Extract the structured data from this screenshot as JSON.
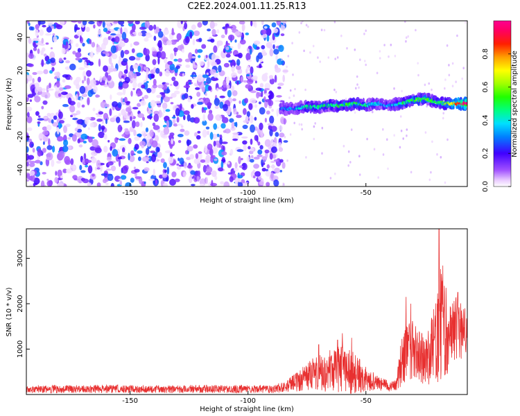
{
  "title": "C2E2.2024.001.11.25.R13",
  "chart_data": [
    {
      "type": "heatmap",
      "xlabel": "Height of straight line (km)",
      "ylabel": "Frequency (Hz)",
      "xlim": [
        -194,
        -7
      ],
      "ylim": [
        -50,
        50
      ],
      "xticks": [
        -150,
        -100,
        -50
      ],
      "yticks": [
        -40,
        -20,
        0,
        20,
        40
      ],
      "grid": false,
      "colorbar": {
        "label": "Normalized spectral amplitude",
        "range": [
          0,
          1
        ],
        "ticks": [
          0.0,
          0.2,
          0.4,
          0.6,
          0.8
        ],
        "tick_labels": [
          "0.0",
          "0.2",
          "0.4",
          "0.6",
          "0.8"
        ],
        "colormap": "gist_ncar_r",
        "low_color": "#ffffff",
        "high_color": "#ff0080"
      },
      "noise_region_x": [
        -194,
        -86
      ],
      "noise_amplitude": [
        0.05,
        0.3
      ],
      "signal_track": [
        {
          "x": -86,
          "freq": -3,
          "amp": 0.3
        },
        {
          "x": -80,
          "freq": -3,
          "amp": 0.3
        },
        {
          "x": -75,
          "freq": -2,
          "amp": 0.45
        },
        {
          "x": -70,
          "freq": -2,
          "amp": 0.45
        },
        {
          "x": -65,
          "freq": -1,
          "amp": 0.45
        },
        {
          "x": -60,
          "freq": -1,
          "amp": 0.5
        },
        {
          "x": -55,
          "freq": 0,
          "amp": 0.5
        },
        {
          "x": -50,
          "freq": -1,
          "amp": 0.45
        },
        {
          "x": -45,
          "freq": 0,
          "amp": 0.35
        },
        {
          "x": -40,
          "freq": -1,
          "amp": 0.3
        },
        {
          "x": -35,
          "freq": 0,
          "amp": 0.45
        },
        {
          "x": -30,
          "freq": 2,
          "amp": 0.55
        },
        {
          "x": -25,
          "freq": 3,
          "amp": 0.55
        },
        {
          "x": -20,
          "freq": 1,
          "amp": 0.5
        },
        {
          "x": -15,
          "freq": 0,
          "amp": 0.6
        },
        {
          "x": -11,
          "freq": 0,
          "amp": 0.85
        },
        {
          "x": -8,
          "freq": 0,
          "amp": 1.0
        }
      ]
    },
    {
      "type": "line",
      "xlabel": "Height of straight line (km)",
      "ylabel": "SNR (10 * v/v)",
      "xlim": [
        -194,
        -7
      ],
      "ylim": [
        0,
        3650
      ],
      "xticks": [
        -150,
        -100,
        -50
      ],
      "yticks": [
        1000,
        2000,
        3000
      ],
      "grid": false,
      "series": [
        {
          "color": "#e83030",
          "envelope": [
            {
              "x": -194,
              "mean": 120,
              "spread": 110
            },
            {
              "x": -90,
              "mean": 120,
              "spread": 110
            },
            {
              "x": -85,
              "mean": 160,
              "spread": 150
            },
            {
              "x": -80,
              "mean": 260,
              "spread": 250
            },
            {
              "x": -75,
              "mean": 420,
              "spread": 400
            },
            {
              "x": -70,
              "mean": 480,
              "spread": 500
            },
            {
              "x": -65,
              "mean": 520,
              "spread": 600
            },
            {
              "x": -60,
              "mean": 560,
              "spread": 650
            },
            {
              "x": -55,
              "mean": 450,
              "spread": 600
            },
            {
              "x": -50,
              "mean": 350,
              "spread": 350
            },
            {
              "x": -45,
              "mean": 250,
              "spread": 200
            },
            {
              "x": -40,
              "mean": 180,
              "spread": 150
            },
            {
              "x": -37,
              "mean": 200,
              "spread": 150
            },
            {
              "x": -35,
              "mean": 750,
              "spread": 700
            },
            {
              "x": -32,
              "mean": 1050,
              "spread": 900
            },
            {
              "x": -28,
              "mean": 900,
              "spread": 800
            },
            {
              "x": -24,
              "mean": 750,
              "spread": 700
            },
            {
              "x": -20,
              "mean": 1200,
              "spread": 1200
            },
            {
              "x": -18,
              "mean": 1700,
              "spread": 1700
            },
            {
              "x": -15,
              "mean": 1300,
              "spread": 1100
            },
            {
              "x": -12,
              "mean": 1500,
              "spread": 900
            },
            {
              "x": -9,
              "mean": 1400,
              "spread": 800
            },
            {
              "x": -7,
              "mean": 1150,
              "spread": 600
            }
          ],
          "peaks": [
            {
              "x": -70,
              "y": 1100
            },
            {
              "x": -62,
              "y": 1200
            },
            {
              "x": -60,
              "y": 1350
            },
            {
              "x": -56,
              "y": 1250
            },
            {
              "x": -33,
              "y": 2150
            },
            {
              "x": -31,
              "y": 2000
            },
            {
              "x": -19,
              "y": 3650
            },
            {
              "x": -16,
              "y": 2350
            },
            {
              "x": -11,
              "y": 2250
            },
            {
              "x": -8,
              "y": 1900
            }
          ]
        }
      ]
    }
  ]
}
